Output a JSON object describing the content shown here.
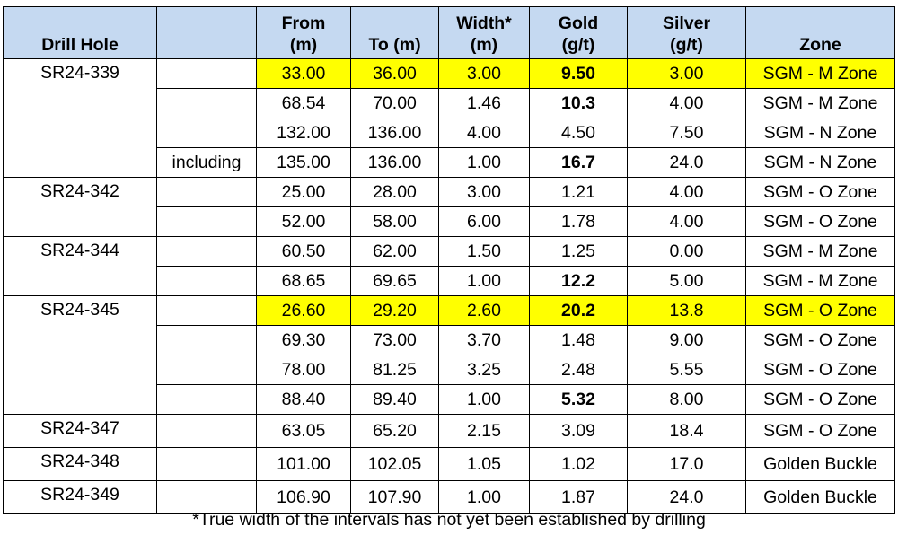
{
  "headers": [
    [
      "",
      "Drill Hole"
    ],
    [
      "",
      ""
    ],
    [
      "From",
      "(m)"
    ],
    [
      "",
      "To (m)"
    ],
    [
      "Width*",
      "(m)"
    ],
    [
      "Gold",
      "(g/t)"
    ],
    [
      "Silver",
      "(g/t)"
    ],
    [
      "",
      "Zone"
    ]
  ],
  "holes": [
    {
      "name": "SR24-339",
      "rows": [
        {
          "note": "",
          "from": "33.00",
          "to": "36.00",
          "width": "3.00",
          "gold": "9.50",
          "silver": "3.00",
          "zone": "SGM - M Zone",
          "gold_bold": true,
          "highlight": true
        },
        {
          "note": "",
          "from": "68.54",
          "to": "70.00",
          "width": "1.46",
          "gold": "10.3",
          "silver": "4.00",
          "zone": "SGM - M Zone",
          "gold_bold": true,
          "highlight": false
        },
        {
          "note": "",
          "from": "132.00",
          "to": "136.00",
          "width": "4.00",
          "gold": "4.50",
          "silver": "7.50",
          "zone": "SGM - N Zone",
          "gold_bold": false,
          "highlight": false
        },
        {
          "note": "including",
          "from": "135.00",
          "to": "136.00",
          "width": "1.00",
          "gold": "16.7",
          "silver": "24.0",
          "zone": "SGM - N Zone",
          "gold_bold": true,
          "highlight": false
        }
      ]
    },
    {
      "name": "SR24-342",
      "rows": [
        {
          "note": "",
          "from": "25.00",
          "to": "28.00",
          "width": "3.00",
          "gold": "1.21",
          "silver": "4.00",
          "zone": "SGM - O Zone",
          "gold_bold": false,
          "highlight": false
        },
        {
          "note": "",
          "from": "52.00",
          "to": "58.00",
          "width": "6.00",
          "gold": "1.78",
          "silver": "4.00",
          "zone": "SGM - O Zone",
          "gold_bold": false,
          "highlight": false
        }
      ]
    },
    {
      "name": "SR24-344",
      "rows": [
        {
          "note": "",
          "from": "60.50",
          "to": "62.00",
          "width": "1.50",
          "gold": "1.25",
          "silver": "0.00",
          "zone": "SGM - M Zone",
          "gold_bold": false,
          "highlight": false
        },
        {
          "note": "",
          "from": "68.65",
          "to": "69.65",
          "width": "1.00",
          "gold": "12.2",
          "silver": "5.00",
          "zone": "SGM - M Zone",
          "gold_bold": true,
          "highlight": false
        }
      ]
    },
    {
      "name": "SR24-345",
      "rows": [
        {
          "note": "",
          "from": "26.60",
          "to": "29.20",
          "width": "2.60",
          "gold": "20.2",
          "silver": "13.8",
          "zone": "SGM - O Zone",
          "gold_bold": true,
          "highlight": true
        },
        {
          "note": "",
          "from": "69.30",
          "to": "73.00",
          "width": "3.70",
          "gold": "1.48",
          "silver": "9.00",
          "zone": "SGM - O Zone",
          "gold_bold": false,
          "highlight": false
        },
        {
          "note": "",
          "from": "78.00",
          "to": "81.25",
          "width": "3.25",
          "gold": "2.48",
          "silver": "5.55",
          "zone": "SGM - O Zone",
          "gold_bold": false,
          "highlight": false
        },
        {
          "note": "",
          "from": "88.40",
          "to": "89.40",
          "width": "1.00",
          "gold": "5.32",
          "silver": "8.00",
          "zone": "SGM - O Zone",
          "gold_bold": true,
          "highlight": false
        }
      ]
    },
    {
      "name": "SR24-347",
      "rows": [
        {
          "note": "",
          "from": "63.05",
          "to": "65.20",
          "width": "2.15",
          "gold": "3.09",
          "silver": "18.4",
          "zone": "SGM - O Zone",
          "gold_bold": false,
          "highlight": false
        }
      ]
    },
    {
      "name": "SR24-348",
      "rows": [
        {
          "note": "",
          "from": "101.00",
          "to": "102.05",
          "width": "1.05",
          "gold": "1.02",
          "silver": "17.0",
          "zone": "Golden Buckle",
          "gold_bold": false,
          "highlight": false
        }
      ]
    },
    {
      "name": "SR24-349",
      "rows": [
        {
          "note": "",
          "from": "106.90",
          "to": "107.90",
          "width": "1.00",
          "gold": "1.87",
          "silver": "24.0",
          "zone": "Golden Buckle",
          "gold_bold": false,
          "highlight": false
        }
      ]
    }
  ],
  "footnote": "*True width of the intervals has not yet been established by drilling",
  "colors": {
    "header_bg": "#c5d9f1",
    "highlight": "#ffff00"
  }
}
